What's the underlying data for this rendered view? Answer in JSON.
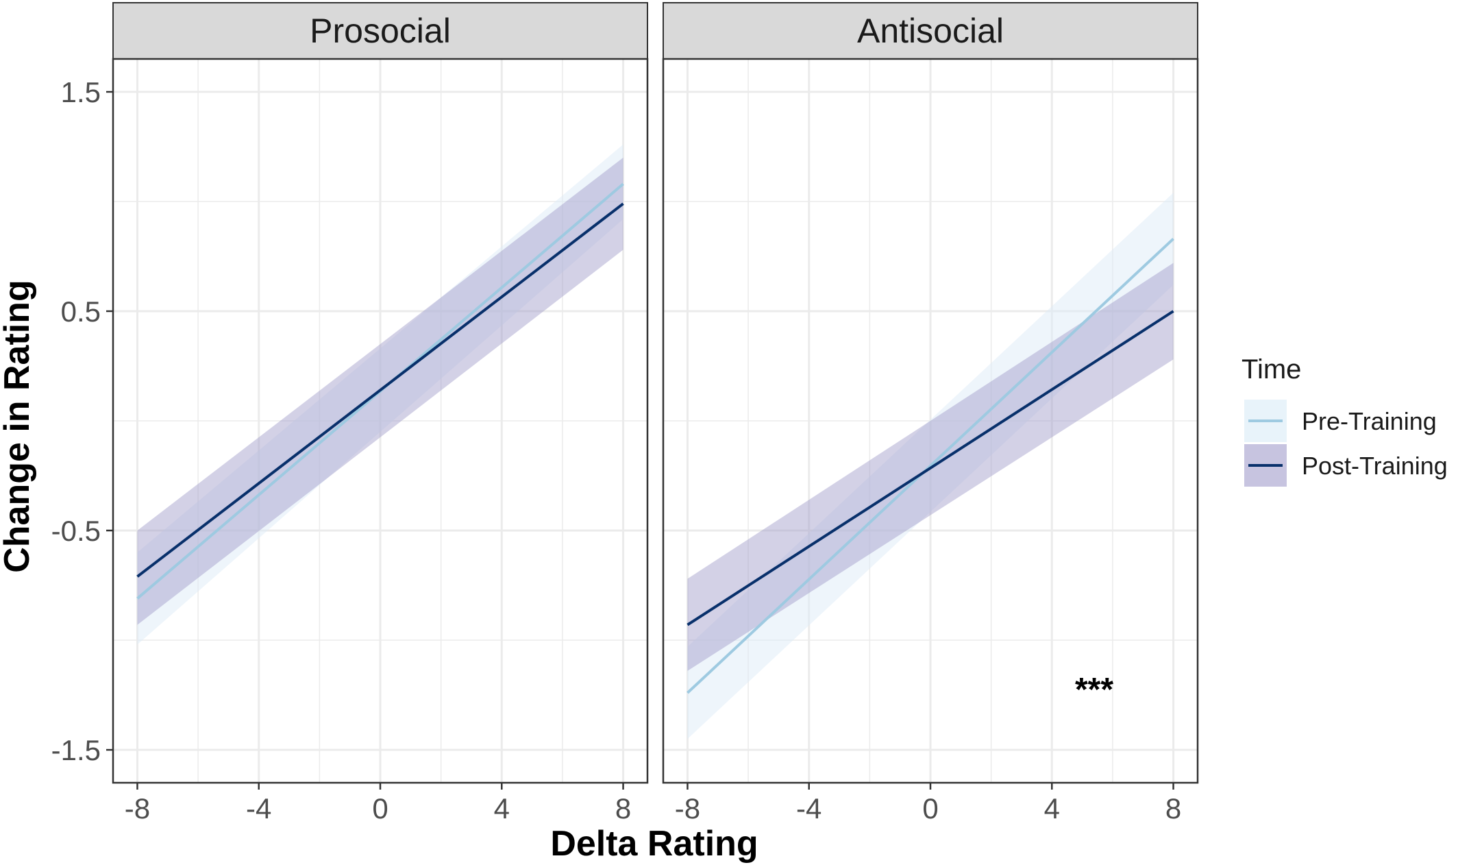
{
  "chart_data": {
    "type": "line",
    "xlabel": "Delta Rating",
    "ylabel": "Change in Rating",
    "xlim": [
      -8.8,
      8.8
    ],
    "ylim": [
      -1.65,
      1.65
    ],
    "x_ticks": [
      -8,
      -4,
      0,
      4,
      8
    ],
    "y_ticks": [
      -1.5,
      -0.5,
      0.5,
      1.5
    ],
    "x_tick_labels": [
      "-8",
      "-4",
      "0",
      "4",
      "8"
    ],
    "y_tick_labels": [
      "-1.5",
      "-0.5",
      "0.5",
      "1.5"
    ],
    "grid": true,
    "legend": {
      "title": "Time",
      "position": "right",
      "entries": [
        {
          "label": "Pre-Training",
          "color": "#9ecae1",
          "fill": "#deebf7"
        },
        {
          "label": "Post-Training",
          "color": "#08306b",
          "fill": "#9e9ac8"
        }
      ]
    },
    "facets": [
      {
        "label": "Prosocial",
        "annotation": "",
        "series": [
          {
            "name": "Pre-Training",
            "x": [
              -8,
              8
            ],
            "y": [
              -0.81,
              1.08
            ],
            "ci_lower": [
              -1.02,
              0.92
            ],
            "ci_upper": [
              -0.6,
              1.26
            ]
          },
          {
            "name": "Post-Training",
            "x": [
              -8,
              8
            ],
            "y": [
              -0.71,
              0.99
            ],
            "ci_lower": [
              -0.93,
              0.78
            ],
            "ci_upper": [
              -0.5,
              1.2
            ]
          }
        ]
      },
      {
        "label": "Antisocial",
        "annotation": "***",
        "series": [
          {
            "name": "Pre-Training",
            "x": [
              -8,
              8
            ],
            "y": [
              -1.24,
              0.83
            ],
            "ci_lower": [
              -1.45,
              0.62
            ],
            "ci_upper": [
              -1.03,
              1.04
            ]
          },
          {
            "name": "Post-Training",
            "x": [
              -8,
              8
            ],
            "y": [
              -0.93,
              0.5
            ],
            "ci_lower": [
              -1.14,
              0.28
            ],
            "ci_upper": [
              -0.72,
              0.72
            ]
          }
        ]
      }
    ]
  }
}
